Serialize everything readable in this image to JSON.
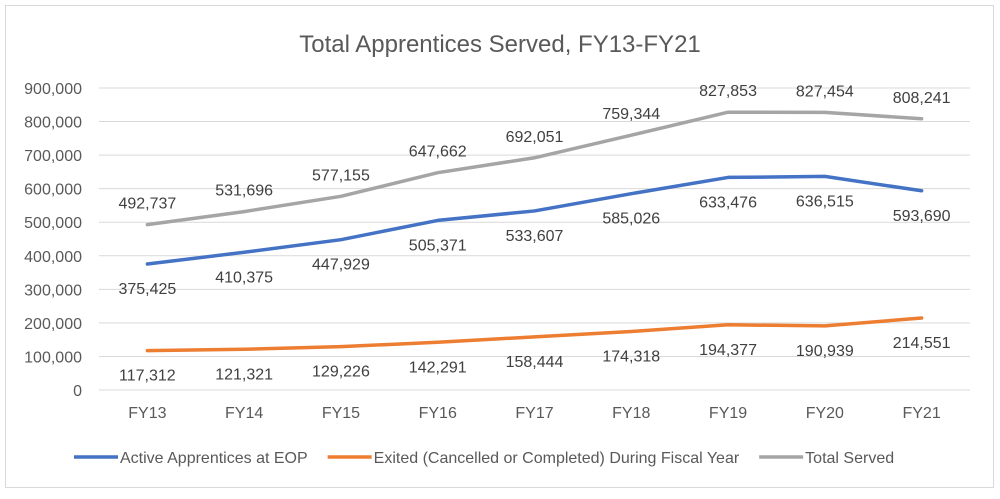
{
  "chart_data": {
    "type": "line",
    "title": "Total Apprentices Served, FY13-FY21",
    "xlabel": "",
    "ylabel": "",
    "categories": [
      "FY13",
      "FY14",
      "FY15",
      "FY16",
      "FY17",
      "FY18",
      "FY19",
      "FY20",
      "FY21"
    ],
    "ylim": [
      0,
      900000
    ],
    "yticks": [
      0,
      100000,
      200000,
      300000,
      400000,
      500000,
      600000,
      700000,
      800000,
      900000
    ],
    "ytick_labels": [
      "0",
      "100,000",
      "200,000",
      "300,000",
      "400,000",
      "500,000",
      "600,000",
      "700,000",
      "800,000",
      "900,000"
    ],
    "grid": true,
    "legend_position": "bottom",
    "series": [
      {
        "name": "Active Apprentices at EOP",
        "color": "#4472C4",
        "label_position": "below",
        "values": [
          375425,
          410375,
          447929,
          505371,
          533607,
          585026,
          633476,
          636515,
          593690
        ],
        "labels": [
          "375,425",
          "410,375",
          "447,929",
          "505,371",
          "533,607",
          "585,026",
          "633,476",
          "636,515",
          "593,690"
        ]
      },
      {
        "name": "Exited (Cancelled or Completed) During Fiscal Year",
        "color": "#ED7D31",
        "label_position": "below",
        "values": [
          117312,
          121321,
          129226,
          142291,
          158444,
          174318,
          194377,
          190939,
          214551
        ],
        "labels": [
          "117,312",
          "121,321",
          "129,226",
          "142,291",
          "158,444",
          "174,318",
          "194,377",
          "190,939",
          "214,551"
        ]
      },
      {
        "name": "Total Served",
        "color": "#A5A5A5",
        "label_position": "above",
        "values": [
          492737,
          531696,
          577155,
          647662,
          692051,
          759344,
          827853,
          827454,
          808241
        ],
        "labels": [
          "492,737",
          "531,696",
          "577,155",
          "647,662",
          "692,051",
          "759,344",
          "827,853",
          "827,454",
          "808,241"
        ]
      }
    ]
  }
}
